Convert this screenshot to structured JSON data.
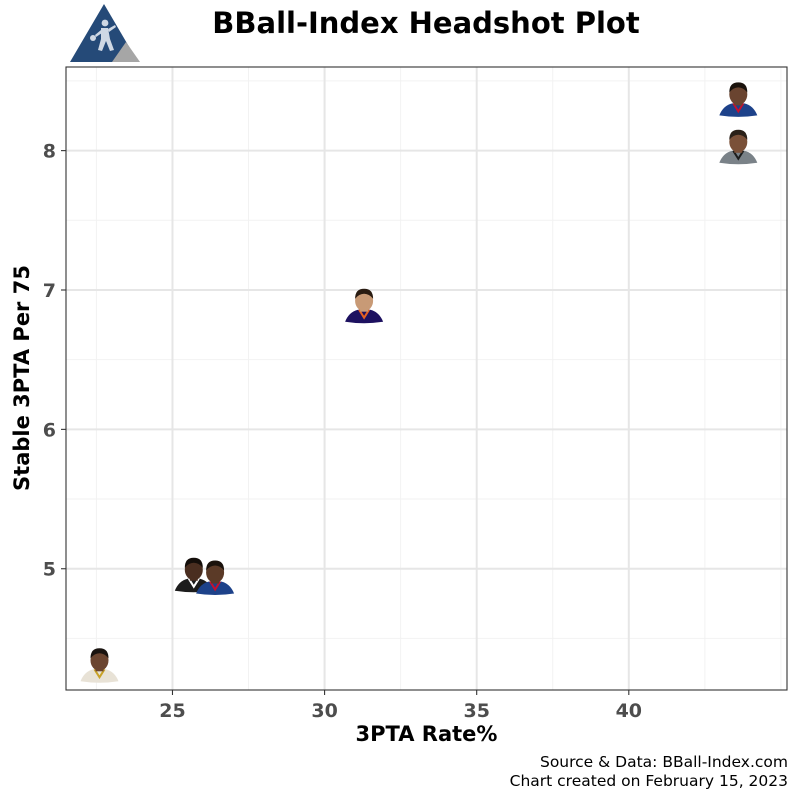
{
  "header": {
    "title": "BBall-Index Headshot Plot"
  },
  "colors": {
    "logo_primary": "#254a78",
    "logo_secondary": "#a6a6a6",
    "grid_major": "#e6e6e6",
    "grid_minor": "#f2f2f2",
    "panel_border": "#333333",
    "tick_text": "#4d4d4d"
  },
  "caption": {
    "source": "Source & Data: BBall-Index.com",
    "created": "Chart created on February 15, 2023"
  },
  "chart_data": {
    "type": "scatter",
    "title": "BBall-Index Headshot Plot",
    "xlabel": "3PTA Rate%",
    "ylabel": "Stable 3PTA Per 75",
    "xlim": [
      21.5,
      45.2
    ],
    "ylim": [
      4.13,
      8.6
    ],
    "x_ticks": [
      25,
      30,
      35,
      40
    ],
    "y_ticks": [
      5,
      6,
      7,
      8
    ],
    "grid": true,
    "legend": "none",
    "marker": "player headshot",
    "points": [
      {
        "x": 22.6,
        "y": 4.3,
        "jersey": "#e8e2d6",
        "trim": "#c9a227",
        "skin": "#6b4530",
        "hair": "#1a1410"
      },
      {
        "x": 25.7,
        "y": 4.95,
        "jersey": "#1c1c1c",
        "trim": "#ffffff",
        "skin": "#4a2e20",
        "hair": "#140e0a"
      },
      {
        "x": 26.4,
        "y": 4.93,
        "jersey": "#1d428a",
        "trim": "#c8102e",
        "skin": "#5b3a27",
        "hair": "#1a120c"
      },
      {
        "x": 31.3,
        "y": 6.88,
        "jersey": "#1d1160",
        "trim": "#e56020",
        "skin": "#c89a76",
        "hair": "#2a1c12"
      },
      {
        "x": 43.6,
        "y": 8.36,
        "jersey": "#1d428a",
        "trim": "#c8102e",
        "skin": "#6a4430",
        "hair": "#1a120c"
      },
      {
        "x": 43.6,
        "y": 8.02,
        "jersey": "#7a8288",
        "trim": "#1c1c1c",
        "skin": "#7a5038",
        "hair": "#2a2018"
      }
    ]
  }
}
